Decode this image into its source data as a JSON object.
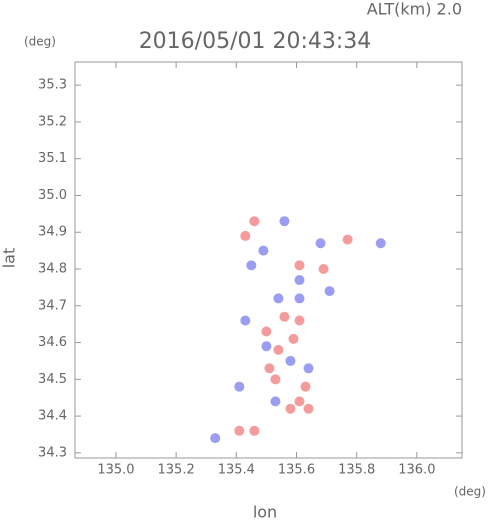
{
  "chart_data": {
    "type": "scatter",
    "title": "2016/05/01 20:43:34",
    "subtitle": "ALT(km) 2.0",
    "x_label": "lon",
    "y_label": "lat",
    "x_unit": "(deg)",
    "y_unit": "(deg)",
    "xlim": [
      134.864,
      136.15
    ],
    "ylim": [
      34.286,
      35.363
    ],
    "xticks": [
      {
        "value": 135,
        "label": "135.0"
      },
      135.2,
      135.4,
      135.6,
      135.8,
      {
        "value": 136,
        "label": "136.0"
      }
    ],
    "yticks": [
      34.3,
      34.4,
      34.5,
      34.6,
      34.7,
      34.8,
      34.9,
      {
        "value": 35,
        "label": "35.0"
      },
      35.1,
      35.2,
      35.3
    ],
    "grid": false,
    "series": [
      {
        "color": "#f28b8b",
        "x": [
          135.41,
          135.46,
          135.58,
          135.61,
          135.63,
          135.53,
          135.54,
          135.59,
          135.5,
          135.61,
          135.56,
          135.43,
          135.46,
          135.69,
          135.77,
          135.61,
          135.51,
          135.64
        ],
        "values": [
          34.36,
          34.36,
          34.42,
          34.44,
          34.48,
          34.5,
          34.58,
          34.61,
          34.63,
          34.66,
          34.67,
          34.89,
          34.93,
          34.8,
          34.88,
          34.81,
          34.53,
          34.42
        ]
      },
      {
        "color": "#8a8cf0",
        "x": [
          135.33,
          135.41,
          135.49,
          135.56,
          135.68,
          135.43,
          135.61,
          135.54,
          135.58,
          135.53,
          135.64,
          135.71,
          135.88,
          135.5,
          135.61,
          135.45
        ],
        "values": [
          34.34,
          34.48,
          34.85,
          34.93,
          34.87,
          34.66,
          34.77,
          34.72,
          34.55,
          34.44,
          34.53,
          34.74,
          34.87,
          34.59,
          34.72,
          34.81
        ]
      }
    ]
  }
}
